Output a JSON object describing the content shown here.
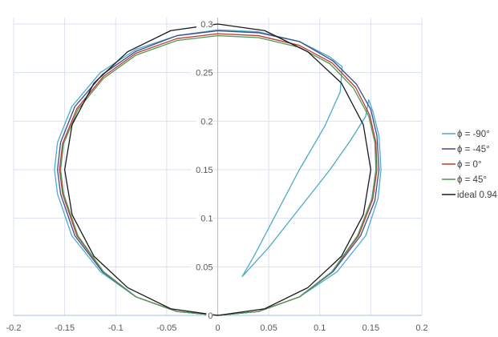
{
  "chart_data": {
    "type": "line",
    "title": "",
    "xlabel": "",
    "ylabel": "",
    "xlim": [
      -0.2,
      0.2
    ],
    "ylim": [
      0,
      0.3
    ],
    "xticks": [
      -0.2,
      -0.15,
      -0.1,
      -0.05,
      0,
      0.05,
      0.1,
      0.15,
      0.2
    ],
    "yticks": [
      0,
      0.05,
      0.1,
      0.15,
      0.2,
      0.25,
      0.3
    ],
    "xtick_labels": [
      "-0.2",
      "-0.15",
      "-0.1",
      "-0.05",
      "0",
      "0.05",
      "0.1",
      "0.15",
      "0.2"
    ],
    "ytick_labels": [
      "0",
      "0.05",
      "0.1",
      "0.15",
      "0.2",
      "0.25",
      "0.3"
    ],
    "grid": true,
    "legend_position": "right",
    "series": [
      {
        "name": "ϕ = -90°",
        "color": "#4bacc6",
        "points": [
          [
            0,
            0
          ],
          [
            -0.04,
            0.004
          ],
          [
            -0.08,
            0.019
          ],
          [
            -0.115,
            0.045
          ],
          [
            -0.143,
            0.082
          ],
          [
            -0.157,
            0.125
          ],
          [
            -0.16,
            0.15
          ],
          [
            -0.157,
            0.178
          ],
          [
            -0.143,
            0.215
          ],
          [
            -0.115,
            0.25
          ],
          [
            -0.08,
            0.274
          ],
          [
            -0.04,
            0.288
          ],
          [
            0,
            0.294
          ],
          [
            0.04,
            0.292
          ],
          [
            0.08,
            0.282
          ],
          [
            0.11,
            0.266
          ],
          [
            0.122,
            0.256
          ],
          [
            0.12,
            0.23
          ],
          [
            0.105,
            0.195
          ],
          [
            0.08,
            0.15
          ],
          [
            0.055,
            0.1
          ],
          [
            0.035,
            0.06
          ],
          [
            0.024,
            0.04
          ],
          [
            0.05,
            0.07
          ],
          [
            0.08,
            0.11
          ],
          [
            0.11,
            0.15
          ],
          [
            0.13,
            0.18
          ],
          [
            0.145,
            0.205
          ],
          [
            0.148,
            0.222
          ],
          [
            0.152,
            0.21
          ],
          [
            0.158,
            0.185
          ],
          [
            0.16,
            0.15
          ],
          [
            0.157,
            0.12
          ],
          [
            0.145,
            0.082
          ],
          [
            0.117,
            0.045
          ],
          [
            0.08,
            0.019
          ],
          [
            0.04,
            0.004
          ],
          [
            0,
            0
          ]
        ]
      },
      {
        "name": "ϕ = -45°",
        "color": "#3e4a8e",
        "points": [
          [
            0,
            0
          ],
          [
            -0.04,
            0.004
          ],
          [
            -0.08,
            0.019
          ],
          [
            -0.113,
            0.045
          ],
          [
            -0.14,
            0.082
          ],
          [
            -0.154,
            0.125
          ],
          [
            -0.157,
            0.15
          ],
          [
            -0.154,
            0.178
          ],
          [
            -0.14,
            0.215
          ],
          [
            -0.113,
            0.248
          ],
          [
            -0.08,
            0.272
          ],
          [
            -0.04,
            0.288
          ],
          [
            0,
            0.293
          ],
          [
            0.04,
            0.291
          ],
          [
            0.08,
            0.282
          ],
          [
            0.113,
            0.262
          ],
          [
            0.136,
            0.238
          ],
          [
            0.15,
            0.212
          ],
          [
            0.156,
            0.185
          ],
          [
            0.158,
            0.15
          ],
          [
            0.154,
            0.118
          ],
          [
            0.14,
            0.082
          ],
          [
            0.113,
            0.045
          ],
          [
            0.08,
            0.019
          ],
          [
            0.04,
            0.004
          ],
          [
            0,
            0
          ]
        ]
      },
      {
        "name": "ϕ = 0°",
        "color": "#c0392b",
        "points": [
          [
            0,
            0
          ],
          [
            -0.04,
            0.004
          ],
          [
            -0.08,
            0.019
          ],
          [
            -0.112,
            0.045
          ],
          [
            -0.138,
            0.082
          ],
          [
            -0.152,
            0.125
          ],
          [
            -0.155,
            0.15
          ],
          [
            -0.152,
            0.177
          ],
          [
            -0.138,
            0.213
          ],
          [
            -0.112,
            0.246
          ],
          [
            -0.08,
            0.27
          ],
          [
            -0.04,
            0.285
          ],
          [
            0,
            0.29
          ],
          [
            0.04,
            0.288
          ],
          [
            0.08,
            0.278
          ],
          [
            0.112,
            0.26
          ],
          [
            0.135,
            0.235
          ],
          [
            0.149,
            0.206
          ],
          [
            0.155,
            0.178
          ],
          [
            0.156,
            0.15
          ],
          [
            0.152,
            0.12
          ],
          [
            0.138,
            0.082
          ],
          [
            0.112,
            0.045
          ],
          [
            0.08,
            0.019
          ],
          [
            0.04,
            0.004
          ],
          [
            0,
            0
          ]
        ]
      },
      {
        "name": "ϕ = 45°",
        "color": "#4e9a5a",
        "points": [
          [
            0,
            0
          ],
          [
            -0.04,
            0.004
          ],
          [
            -0.08,
            0.019
          ],
          [
            -0.112,
            0.045
          ],
          [
            -0.137,
            0.082
          ],
          [
            -0.151,
            0.125
          ],
          [
            -0.154,
            0.15
          ],
          [
            -0.151,
            0.177
          ],
          [
            -0.137,
            0.212
          ],
          [
            -0.112,
            0.244
          ],
          [
            -0.08,
            0.268
          ],
          [
            -0.04,
            0.283
          ],
          [
            0,
            0.288
          ],
          [
            0.04,
            0.286
          ],
          [
            0.08,
            0.276
          ],
          [
            0.11,
            0.259
          ],
          [
            0.133,
            0.234
          ],
          [
            0.148,
            0.205
          ],
          [
            0.154,
            0.178
          ],
          [
            0.155,
            0.15
          ],
          [
            0.151,
            0.12
          ],
          [
            0.137,
            0.082
          ],
          [
            0.112,
            0.045
          ],
          [
            0.08,
            0.019
          ],
          [
            0.04,
            0.004
          ],
          [
            0,
            0
          ]
        ]
      },
      {
        "name": "ideal 0.94",
        "color": "#1a1a1a",
        "points": [
          [
            0,
            0
          ],
          [
            -0.046,
            0.0068
          ],
          [
            -0.0882,
            0.0285
          ],
          [
            -0.1213,
            0.0609
          ],
          [
            -0.1427,
            0.1037
          ],
          [
            -0.15,
            0.15
          ],
          [
            -0.1427,
            0.1963
          ],
          [
            -0.1213,
            0.2391
          ],
          [
            -0.0882,
            0.2715
          ],
          [
            -0.046,
            0.2932
          ],
          [
            0,
            0.3
          ],
          [
            0.046,
            0.2932
          ],
          [
            0.0882,
            0.2715
          ],
          [
            0.1213,
            0.2391
          ],
          [
            0.1427,
            0.1963
          ],
          [
            0.15,
            0.15
          ],
          [
            0.1427,
            0.1037
          ],
          [
            0.1213,
            0.0609
          ],
          [
            0.0882,
            0.0285
          ],
          [
            0.046,
            0.0068
          ],
          [
            0,
            0
          ]
        ]
      }
    ]
  }
}
